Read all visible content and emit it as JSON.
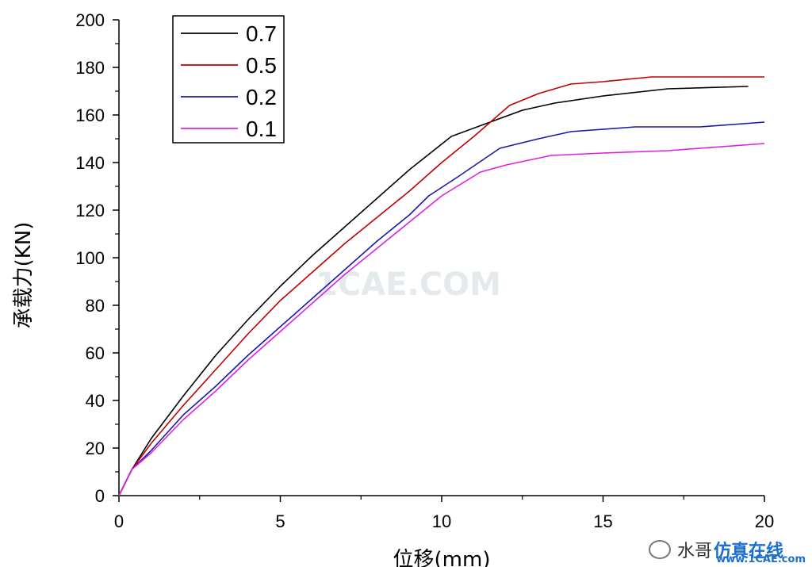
{
  "chart_data": {
    "type": "line",
    "title": "",
    "xlabel": "位移(mm)",
    "ylabel": "承载力(KN)",
    "xlim": [
      0,
      20
    ],
    "ylim": [
      0,
      200
    ],
    "xticks": [
      0,
      5,
      10,
      15,
      20
    ],
    "yticks": [
      0,
      20,
      40,
      60,
      80,
      100,
      120,
      140,
      160,
      180,
      200
    ],
    "grid": false,
    "legend_position": "top-left",
    "series": [
      {
        "name": "0.7",
        "color": "#000000",
        "x": [
          0,
          0.4,
          1.0,
          2.0,
          3.0,
          4.0,
          5.0,
          6.0,
          7.0,
          8.0,
          9.0,
          10.3,
          11.5,
          12.5,
          13.5,
          15.0,
          17.0,
          19.5
        ],
        "y": [
          0,
          11,
          24,
          42,
          59,
          74,
          88,
          101,
          113,
          125,
          137,
          151,
          157,
          162,
          165,
          168,
          171,
          172
        ]
      },
      {
        "name": "0.5",
        "color": "#c00000",
        "x": [
          0,
          0.4,
          1.0,
          2.0,
          3.0,
          4.0,
          5.0,
          6.0,
          7.0,
          8.0,
          9.0,
          10.0,
          11.0,
          12.1,
          13.0,
          14.0,
          15.0,
          16.5,
          18.0,
          20.0
        ],
        "y": [
          0,
          11,
          22,
          38,
          53,
          68,
          82,
          94,
          106,
          117,
          128,
          140,
          151,
          164,
          169,
          173,
          174,
          176,
          176,
          176
        ]
      },
      {
        "name": "0.2",
        "color": "#1a1aa8",
        "x": [
          0,
          0.4,
          1.0,
          2.0,
          3.0,
          4.0,
          5.0,
          6.0,
          7.0,
          8.0,
          9.0,
          9.6,
          10.5,
          11.8,
          13.0,
          14.0,
          16.0,
          18.0,
          20.0
        ],
        "y": [
          0,
          11,
          19,
          34,
          46,
          59,
          71,
          83,
          95,
          107,
          118,
          126,
          134,
          146,
          150,
          153,
          155,
          155,
          157
        ]
      },
      {
        "name": "0.1",
        "color": "#e020e0",
        "x": [
          0,
          0.4,
          1.0,
          2.0,
          3.0,
          4.0,
          5.0,
          6.0,
          7.0,
          8.0,
          9.0,
          10.0,
          11.2,
          12.0,
          13.4,
          15.0,
          17.0,
          20.0
        ],
        "y": [
          0,
          11,
          18,
          32,
          44,
          57,
          69,
          81,
          93,
          104,
          115,
          126,
          136,
          139,
          143,
          144,
          145,
          148
        ]
      }
    ]
  },
  "watermarks": {
    "center": "1CAE.COM",
    "brand_dark": "水哥",
    "brand_blue": "仿真在线",
    "site": "www.1CAE.com"
  }
}
